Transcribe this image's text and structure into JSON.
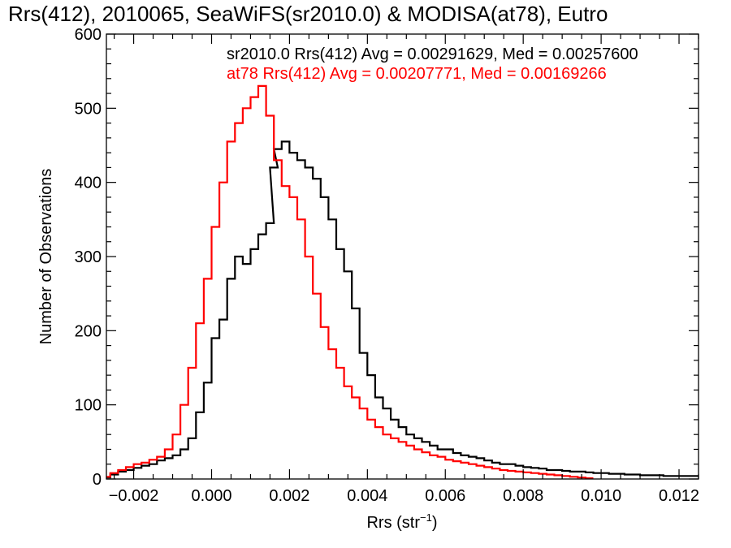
{
  "chart_data": {
    "type": "line",
    "step": true,
    "title": "Rrs(412), 2010065, SeaWiFS(sr2010.0) & MODISA(at78), Eutro",
    "xlabel": "Rrs (str",
    "xlabel_sup": "−1",
    "xlabel_close": ")",
    "ylabel": "Number of Observations",
    "xlim": [
      -0.0027,
      0.0125
    ],
    "ylim": [
      0,
      600
    ],
    "xticks": [
      -0.002,
      0.0,
      0.002,
      0.004,
      0.006,
      0.008,
      0.01,
      0.012
    ],
    "xtick_labels": [
      "−0.002",
      "0.000",
      "0.002",
      "0.004",
      "0.006",
      "0.008",
      "0.010",
      "0.012"
    ],
    "yticks": [
      0,
      100,
      200,
      300,
      400,
      500,
      600
    ],
    "ytick_labels": [
      "0",
      "100",
      "200",
      "300",
      "400",
      "500",
      "600"
    ],
    "grid": false,
    "legend": "top-right",
    "annotations": [
      {
        "text": "sr2010.0 Rrs(412) Avg = 0.00291629, Med = 0.00257600",
        "color": "#000000"
      },
      {
        "text": "at78 Rrs(412) Avg = 0.00207771, Med = 0.00169266",
        "color": "#ff0000"
      }
    ],
    "series": [
      {
        "name": "sr2010.0",
        "color": "#000000",
        "x": [
          -0.0027,
          -0.0025,
          -0.0023,
          -0.0021,
          -0.0019,
          -0.0017,
          -0.0015,
          -0.0013,
          -0.0011,
          -0.0009,
          -0.0007,
          -0.0005,
          -0.0003,
          -0.0001,
          0.0001,
          0.0003,
          0.0005,
          0.0007,
          0.0009,
          0.0011,
          0.0013,
          0.0015,
          0.0016,
          0.0017,
          0.0019,
          0.0021,
          0.0023,
          0.0025,
          0.0027,
          0.0029,
          0.0031,
          0.0033,
          0.0035,
          0.0037,
          0.0039,
          0.0041,
          0.0043,
          0.0045,
          0.0047,
          0.0049,
          0.0051,
          0.0053,
          0.0055,
          0.0057,
          0.0059,
          0.0061,
          0.0063,
          0.0065,
          0.0067,
          0.0069,
          0.0071,
          0.0073,
          0.0075,
          0.0077,
          0.0079,
          0.0081,
          0.0083,
          0.0085,
          0.0087,
          0.0089,
          0.0091,
          0.0093,
          0.0095,
          0.0097,
          0.0099,
          0.0101,
          0.0103,
          0.0105,
          0.0107,
          0.0109,
          0.0111,
          0.0113,
          0.0115,
          0.0117,
          0.0119,
          0.0121,
          0.0123,
          0.0125
        ],
        "values": [
          2,
          6,
          10,
          12,
          15,
          18,
          20,
          25,
          28,
          32,
          40,
          55,
          90,
          130,
          190,
          215,
          270,
          300,
          290,
          310,
          330,
          345,
          420,
          445,
          455,
          440,
          430,
          420,
          405,
          380,
          350,
          310,
          280,
          230,
          170,
          140,
          110,
          95,
          80,
          70,
          60,
          55,
          50,
          45,
          40,
          40,
          35,
          32,
          30,
          28,
          25,
          22,
          20,
          20,
          18,
          16,
          15,
          14,
          12,
          12,
          11,
          10,
          10,
          9,
          8,
          8,
          7,
          7,
          6,
          6,
          5,
          5,
          5,
          4,
          4,
          4,
          4,
          4
        ]
      },
      {
        "name": "at78",
        "color": "#ff0000",
        "x": [
          -0.0027,
          -0.0025,
          -0.0023,
          -0.0021,
          -0.0019,
          -0.0017,
          -0.0015,
          -0.0013,
          -0.0011,
          -0.0009,
          -0.0007,
          -0.0005,
          -0.0003,
          -0.0001,
          0.0001,
          0.0003,
          0.0005,
          0.0007,
          0.0009,
          0.0011,
          0.0013,
          0.0015,
          0.0017,
          0.0019,
          0.0021,
          0.0023,
          0.0025,
          0.0027,
          0.0029,
          0.0031,
          0.0033,
          0.0035,
          0.0037,
          0.0039,
          0.0041,
          0.0043,
          0.0045,
          0.0047,
          0.0049,
          0.0051,
          0.0053,
          0.0055,
          0.0057,
          0.0059,
          0.0061,
          0.0063,
          0.0065,
          0.0067,
          0.0069,
          0.0071,
          0.0073,
          0.0075,
          0.0077,
          0.0079,
          0.0081,
          0.0083,
          0.0085,
          0.0087,
          0.0089,
          0.0091,
          0.0093,
          0.0095,
          0.0097
        ],
        "values": [
          3,
          8,
          12,
          16,
          20,
          22,
          26,
          30,
          40,
          60,
          100,
          150,
          210,
          270,
          340,
          400,
          455,
          480,
          500,
          515,
          530,
          490,
          430,
          395,
          380,
          350,
          300,
          250,
          205,
          175,
          150,
          125,
          110,
          95,
          80,
          70,
          60,
          55,
          50,
          45,
          40,
          36,
          32,
          30,
          26,
          24,
          22,
          20,
          18,
          16,
          14,
          12,
          11,
          10,
          9,
          8,
          7,
          6,
          5,
          4,
          3,
          2,
          1
        ]
      }
    ]
  }
}
